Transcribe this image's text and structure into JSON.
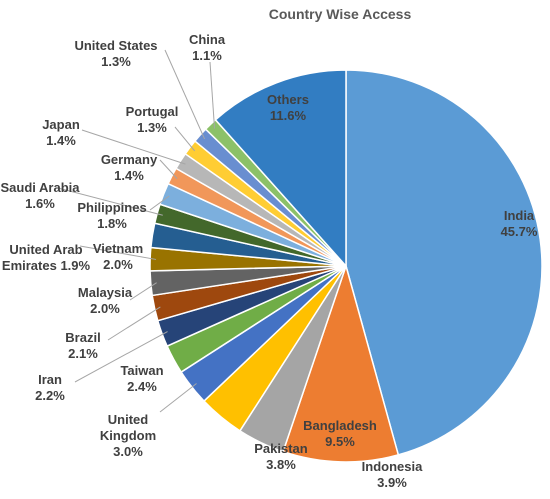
{
  "chart_data": {
    "type": "pie",
    "title": "Country Wise Access",
    "categories": [
      "India",
      "Bangladesh",
      "Indonesia",
      "Pakistan",
      "United Kingdom",
      "Taiwan",
      "Iran",
      "Brazil",
      "Malaysia",
      "United Arab Emirates",
      "Vietnam",
      "Saudi Arabia",
      "Philippines",
      "Germany",
      "Japan",
      "Portugal",
      "United States",
      "China",
      "Others"
    ],
    "values": [
      45.7,
      9.5,
      3.9,
      3.8,
      3.0,
      2.4,
      2.2,
      2.1,
      2.0,
      1.9,
      2.0,
      1.6,
      1.8,
      1.4,
      1.4,
      1.3,
      1.3,
      1.1,
      11.6
    ],
    "value_labels": [
      "45.7%",
      "9.5%",
      "3.9%",
      "3.8%",
      "3.0%",
      "2.4%",
      "2.2%",
      "2.1%",
      "2.0%",
      "1.9%",
      "2.0%",
      "1.6%",
      "1.8%",
      "1.4%",
      "1.4%",
      "1.3%",
      "1.3%",
      "1.1%",
      "11.6%"
    ],
    "colors": [
      "#5b9bd5",
      "#ed7d31",
      "#a5a5a5",
      "#ffc000",
      "#4472c4",
      "#70ad47",
      "#264478",
      "#9e480e",
      "#636363",
      "#997300",
      "#255e91",
      "#43682b",
      "#7cafdd",
      "#f1975a",
      "#b7b7b7",
      "#ffcd33",
      "#698ed0",
      "#8cc168",
      "#327dc2"
    ]
  }
}
